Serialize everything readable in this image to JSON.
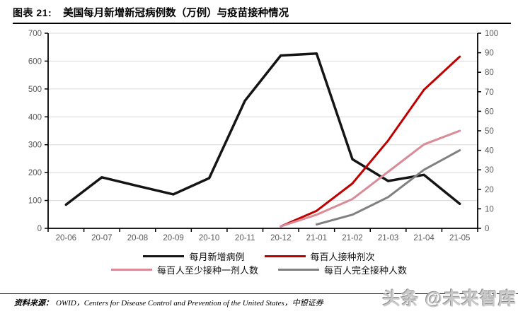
{
  "header": {
    "label": "图表 21:",
    "title": "美国每月新增新冠病例数（万例）与疫苗接种情况"
  },
  "chart_data": {
    "type": "line",
    "title": "美国每月新增新冠病例数（万例）与疫苗接种情况",
    "categories": [
      "20-06",
      "20-07",
      "20-08",
      "20-09",
      "20-10",
      "20-11",
      "20-12",
      "21-01",
      "21-02",
      "21-03",
      "21-04",
      "21-05"
    ],
    "series": [
      {
        "name": "每月新增病例",
        "axis": "left",
        "color": "#141414",
        "values": [
          85,
          183,
          152,
          122,
          180,
          458,
          620,
          627,
          248,
          170,
          192,
          88
        ]
      },
      {
        "name": "每百人接种剂次",
        "axis": "right",
        "color": "#C00000",
        "values": [
          null,
          null,
          null,
          null,
          null,
          null,
          1,
          9,
          23,
          45,
          71,
          88
        ]
      },
      {
        "name": "每百人至少接种一剂人数",
        "axis": "right",
        "color": "#D98B98",
        "values": [
          null,
          null,
          null,
          null,
          null,
          null,
          1,
          7,
          15,
          29,
          43,
          50
        ]
      },
      {
        "name": "每百人完全接种人数",
        "axis": "right",
        "color": "#808080",
        "values": [
          null,
          null,
          null,
          null,
          null,
          null,
          null,
          2,
          7,
          16,
          30,
          40
        ]
      }
    ],
    "left_axis": {
      "min": 0,
      "max": 700,
      "step": 100
    },
    "right_axis": {
      "min": 0,
      "max": 100,
      "step": 10
    },
    "grid": true,
    "legend_position": "bottom"
  },
  "footer": {
    "source_label": "资料来源：",
    "source_text": "OWID，Centers for Disease Control and Prevention of the United States，中银证券",
    "watermark": "头条 @未来智库"
  },
  "colors": {
    "grid": "#D9D9D9",
    "axis": "#000000",
    "axis_label": "#595959"
  }
}
